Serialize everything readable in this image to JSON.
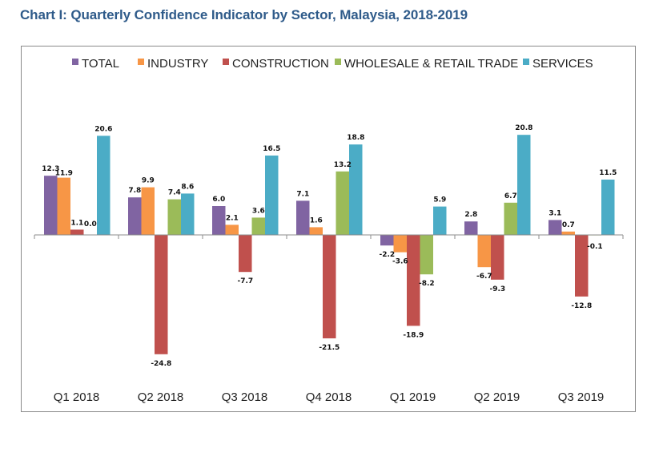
{
  "page": {
    "title": "Chart I: Quarterly Confidence Indicator by Sector, Malaysia, 2018-2019"
  },
  "chart_data": {
    "type": "bar",
    "title": "Chart I: Quarterly Confidence Indicator by Sector, Malaysia, 2018-2019",
    "xlabel": "",
    "ylabel": "",
    "legend_position": "top",
    "grid": false,
    "ylim": [
      -27,
      27
    ],
    "categories": [
      "Q1 2018",
      "Q2 2018",
      "Q3 2018",
      "Q4 2018",
      "Q1 2019",
      "Q2 2019",
      "Q3 2019"
    ],
    "series": [
      {
        "name": "TOTAL",
        "color": "#8064a2",
        "values": [
          12.3,
          7.8,
          6.0,
          7.1,
          -2.2,
          2.8,
          3.1
        ],
        "labels": [
          "12.3",
          "7.8",
          "6.0",
          "7.1",
          "-2.2",
          "2.8",
          "3.1"
        ]
      },
      {
        "name": "INDUSTRY",
        "color": "#f79646",
        "values": [
          11.9,
          9.9,
          2.1,
          1.6,
          -3.6,
          -6.7,
          0.7
        ],
        "labels": [
          "11.9",
          "9.9",
          "2.1",
          "1.6",
          "-3.6",
          "-6.7",
          "0.7"
        ]
      },
      {
        "name": "CONSTRUCTION",
        "color": "#c0504d",
        "values": [
          1.1,
          -24.8,
          -7.7,
          -21.5,
          -18.9,
          -9.3,
          -12.8
        ],
        "labels": [
          "1.1",
          "-24.8",
          "-7.7",
          "-21.5",
          "-18.9",
          "-9.3",
          "-12.8"
        ]
      },
      {
        "name": "WHOLESALE & RETAIL TRADE",
        "color": "#9bbb59",
        "values": [
          0.0,
          7.4,
          3.6,
          13.2,
          -8.2,
          6.7,
          -0.1
        ],
        "labels": [
          "0.0",
          "7.4",
          "3.6",
          "13.2",
          "-8.2",
          "6.7",
          "-0.1"
        ]
      },
      {
        "name": "SERVICES",
        "color": "#4bacc6",
        "values": [
          20.6,
          8.6,
          16.5,
          18.8,
          5.9,
          20.8,
          11.5
        ],
        "labels": [
          "20.6",
          "8.6",
          "16.5",
          "18.8",
          "5.9",
          "20.8",
          "11.5"
        ]
      }
    ]
  }
}
